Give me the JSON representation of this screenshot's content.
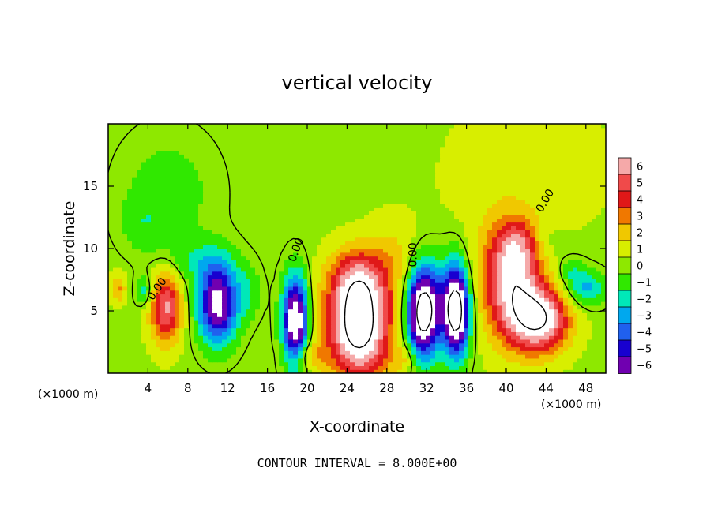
{
  "chart_data": {
    "type": "heatmap",
    "title": "vertical velocity",
    "xlabel": "X-coordinate",
    "ylabel": "Z-coordinate",
    "x_unit": "(×1000 m)",
    "x_unit_right": "(×1000 m)",
    "xlim": [
      0,
      50
    ],
    "ylim": [
      0,
      20
    ],
    "x_ticks": [
      "4",
      "8",
      "12",
      "16",
      "20",
      "24",
      "28",
      "32",
      "36",
      "40",
      "44",
      "48"
    ],
    "x_tick_values": [
      4,
      8,
      12,
      16,
      20,
      24,
      28,
      32,
      36,
      40,
      44,
      48
    ],
    "y_ticks": [
      "5",
      "10",
      "15"
    ],
    "y_tick_values": [
      5,
      10,
      15
    ],
    "colorbar": {
      "labels": [
        "6",
        "5",
        "4",
        "3",
        "2",
        "1",
        "0",
        "−1",
        "−2",
        "−3",
        "−4",
        "−5",
        "−6"
      ],
      "values": [
        6,
        5,
        4,
        3,
        2,
        1,
        0,
        -1,
        -2,
        -3,
        -4,
        -5,
        -6
      ]
    },
    "contour_labels": [
      "0.00",
      "0.00",
      "0.00",
      "0.00"
    ],
    "contour_interval_text": "CONTOUR INTERVAL = 8.000E+00",
    "features": [
      {
        "x": 1.0,
        "z": 6.8,
        "w": 2.5,
        "sx": 0.6,
        "sz": 0.8
      },
      {
        "x": 5.8,
        "z": 5.3,
        "w": 5.5,
        "sx": 1.1,
        "sz": 2.0
      },
      {
        "x": 3.6,
        "z": 6.6,
        "w": -2.5,
        "sx": 0.6,
        "sz": 0.8
      },
      {
        "x": 11.0,
        "z": 5.6,
        "w": -7.5,
        "sx": 1.4,
        "sz": 2.2
      },
      {
        "x": 14.0,
        "z": 6.5,
        "w": -1.5,
        "sx": 1.0,
        "sz": 1.5
      },
      {
        "x": 18.8,
        "z": 4.2,
        "w": -8.5,
        "sx": 0.9,
        "sz": 2.5
      },
      {
        "x": 25.2,
        "z": 3.6,
        "w": 9.0,
        "sx": 2.2,
        "sz": 2.8
      },
      {
        "x": 25.0,
        "z": 7.5,
        "w": 4.0,
        "sx": 2.0,
        "sz": 1.8
      },
      {
        "x": 31.6,
        "z": 4.8,
        "w": -8.5,
        "sx": 1.1,
        "sz": 2.6
      },
      {
        "x": 35.0,
        "z": 4.9,
        "w": -8.5,
        "sx": 0.9,
        "sz": 2.5
      },
      {
        "x": 33.5,
        "z": 5.8,
        "w": -2.5,
        "sx": 2.5,
        "sz": 2.5
      },
      {
        "x": 40.6,
        "z": 7.0,
        "w": 6.5,
        "sx": 2.0,
        "sz": 3.0
      },
      {
        "x": 43.5,
        "z": 4.3,
        "w": 7.0,
        "sx": 2.0,
        "sz": 1.8
      },
      {
        "x": 41.0,
        "z": 10.3,
        "w": 3.0,
        "sx": 1.6,
        "sz": 1.6
      },
      {
        "x": 48.0,
        "z": 6.8,
        "w": -3.0,
        "sx": 1.4,
        "sz": 1.0
      },
      {
        "x": 46.5,
        "z": 8.2,
        "w": -1.5,
        "sx": 1.0,
        "sz": 0.8
      },
      {
        "x": 6.0,
        "z": 14.5,
        "w": -1.2,
        "sx": 3.5,
        "sz": 3.5
      },
      {
        "x": 3.5,
        "z": 12.0,
        "w": -1.0,
        "sx": 1.5,
        "sz": 1.5
      },
      {
        "x": 9.0,
        "z": 9.0,
        "w": -1.5,
        "sx": 2.5,
        "sz": 1.2
      },
      {
        "x": 29.0,
        "z": 9.0,
        "w": 1.5,
        "sx": 2.0,
        "sz": 2.5
      },
      {
        "x": 37.0,
        "z": 7.0,
        "w": 1.0,
        "sx": 1.2,
        "sz": 3.0
      },
      {
        "x": 20.0,
        "z": 1.5,
        "w": 2.0,
        "sx": 1.2,
        "sz": 0.8
      },
      {
        "x": 30.0,
        "z": 1.2,
        "w": 1.5,
        "sx": 1.0,
        "sz": 0.8
      },
      {
        "x": 38.0,
        "z": 16.0,
        "w": 1.0,
        "sx": 3.0,
        "sz": 3.0
      },
      {
        "x": 46.0,
        "z": 16.5,
        "w": 1.0,
        "sx": 3.0,
        "sz": 3.0
      },
      {
        "x": 44.0,
        "z": 10.5,
        "w": -0.8,
        "sx": 1.0,
        "sz": 1.0
      }
    ]
  }
}
